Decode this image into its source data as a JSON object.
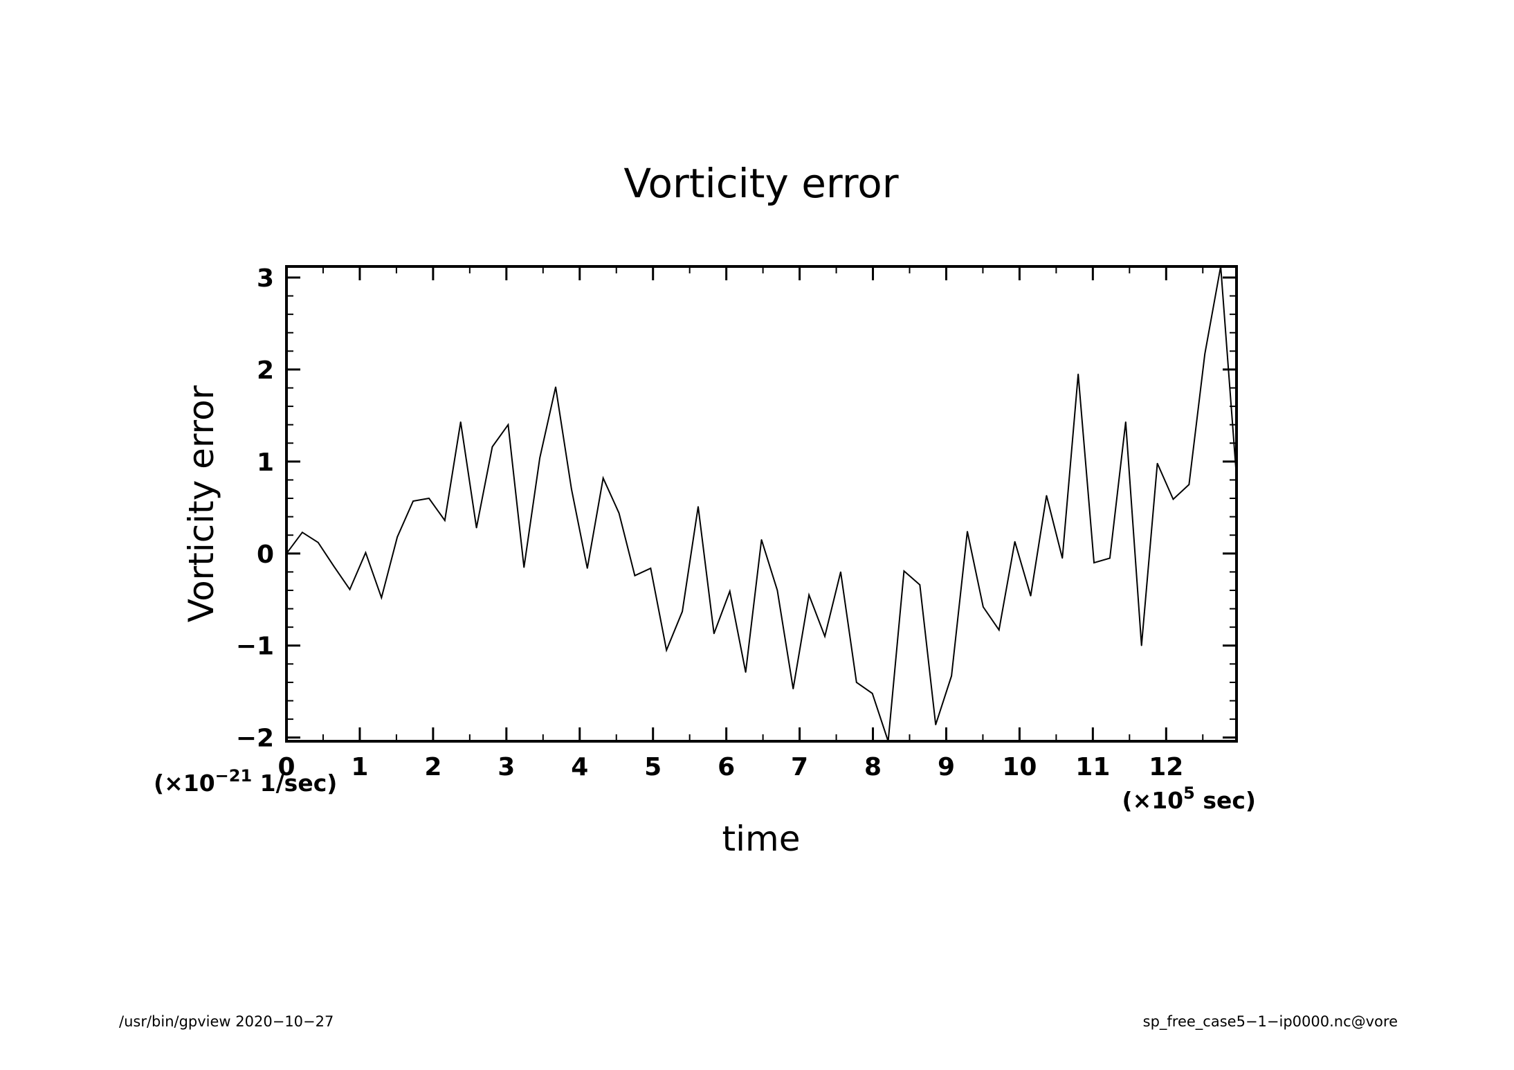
{
  "chart_data": {
    "type": "line",
    "title": "Vorticity error",
    "xlabel": "time",
    "ylabel": "Vorticity error",
    "x_unit": {
      "prefix": "(×10",
      "exponent": "5",
      "suffix": " sec)"
    },
    "y_unit": {
      "prefix": "(×10",
      "exponent": "−21",
      "suffix": " 1/sec)"
    },
    "xlim": [
      0,
      12.96
    ],
    "ylim": [
      -2.04,
      3.12
    ],
    "x_ticks": [
      {
        "value": 0,
        "label": "0"
      },
      {
        "value": 1,
        "label": "1"
      },
      {
        "value": 2,
        "label": "2"
      },
      {
        "value": 3,
        "label": "3"
      },
      {
        "value": 4,
        "label": "4"
      },
      {
        "value": 5,
        "label": "5"
      },
      {
        "value": 6,
        "label": "6"
      },
      {
        "value": 7,
        "label": "7"
      },
      {
        "value": 8,
        "label": "8"
      },
      {
        "value": 9,
        "label": "9"
      },
      {
        "value": 10,
        "label": "10"
      },
      {
        "value": 11,
        "label": "11"
      },
      {
        "value": 12,
        "label": "12"
      }
    ],
    "y_ticks": [
      {
        "value": -2,
        "label": "−2"
      },
      {
        "value": -1,
        "label": "−1"
      },
      {
        "value": 0,
        "label": "0"
      },
      {
        "value": 1,
        "label": "1"
      },
      {
        "value": 2,
        "label": "2"
      },
      {
        "value": 3,
        "label": "3"
      }
    ],
    "x_minor_step": 0.5,
    "y_minor_step": 0.2,
    "grid": false,
    "series": [
      {
        "color": "#000000",
        "x": [
          0,
          0.216,
          0.432,
          0.648,
          0.864,
          1.08,
          1.296,
          1.512,
          1.728,
          1.944,
          2.16,
          2.376,
          2.592,
          2.808,
          3.024,
          3.24,
          3.456,
          3.672,
          3.888,
          4.104,
          4.32,
          4.536,
          4.752,
          4.968,
          5.184,
          5.4,
          5.616,
          5.832,
          6.048,
          6.264,
          6.48,
          6.696,
          6.912,
          7.128,
          7.344,
          7.56,
          7.776,
          7.992,
          8.208,
          8.424,
          8.64,
          8.856,
          9.072,
          9.288,
          9.504,
          9.72,
          9.936,
          10.152,
          10.368,
          10.584,
          10.8,
          11.016,
          11.232,
          11.448,
          11.664,
          11.88,
          12.096,
          12.312,
          12.528,
          12.744,
          12.96
        ],
        "y": [
          0.0,
          0.23,
          0.12,
          -0.14,
          -0.39,
          0.01,
          -0.48,
          0.18,
          0.57,
          0.6,
          0.36,
          1.43,
          0.28,
          1.16,
          1.4,
          -0.15,
          1.04,
          1.81,
          0.7,
          -0.16,
          0.82,
          0.44,
          -0.24,
          -0.16,
          -1.05,
          -0.63,
          0.51,
          -0.87,
          -0.41,
          -1.29,
          0.15,
          -0.4,
          -1.47,
          -0.45,
          -0.9,
          -0.2,
          -1.4,
          -1.52,
          -2.04,
          -0.19,
          -0.34,
          -1.86,
          -1.33,
          0.24,
          -0.58,
          -0.83,
          0.13,
          -0.46,
          0.63,
          -0.05,
          1.95,
          -0.1,
          -0.05,
          1.43,
          -1.0,
          0.98,
          0.59,
          0.75,
          2.17,
          3.12,
          0.83
        ]
      }
    ]
  },
  "footer": {
    "left": "/usr/bin/gpview  2020−10−27",
    "right": "sp_free_case5−1−ip0000.nc@vore"
  }
}
